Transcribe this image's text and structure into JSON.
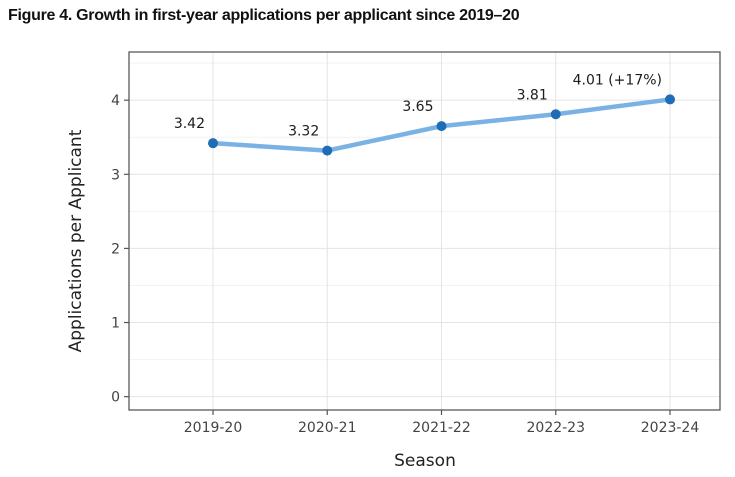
{
  "figure": {
    "caption_prefix": "Figure 4."
  },
  "chart_data": {
    "type": "line",
    "title": "Figure 4. Growth in first-year applications per applicant since 2019–20",
    "categories": [
      "2019-20",
      "2020-21",
      "2021-22",
      "2022-23",
      "2023-24"
    ],
    "series": [
      {
        "name": "Applications per Applicant",
        "values": [
          3.42,
          3.32,
          3.65,
          3.81,
          4.01
        ]
      }
    ],
    "point_labels": [
      "3.42",
      "3.32",
      "3.65",
      "3.81",
      "4.01 (+17%)"
    ],
    "xlabel": "Season",
    "ylabel": "Applications per Applicant",
    "yticks": [
      0,
      1,
      2,
      3,
      4
    ],
    "yticks_minor": [
      0.5,
      1.5,
      2.5,
      3.5,
      4.5
    ],
    "ylim": [
      -0.18,
      4.65
    ],
    "grid": true,
    "legend": "none",
    "colors": {
      "line": "#7ab3e3",
      "marker": "#1f6eb5",
      "grid_major": "#e4e4e4",
      "grid_minor": "#f2f2f2",
      "panel_border": "#58595b",
      "tick": "#555555",
      "tick_label": "#444444",
      "axis_title": "#222222",
      "point_label": "#1c1c1c",
      "title": "#111111"
    }
  }
}
